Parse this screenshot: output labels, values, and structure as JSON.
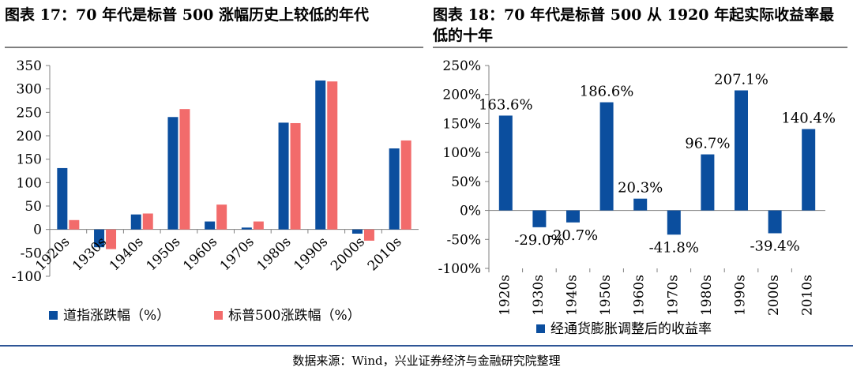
{
  "source": "数据来源：Wind，兴业证券经济与金融研究院整理",
  "chart_data": [
    {
      "title": "图表 17：70 年代是标普 500 涨幅历史上较低的年代",
      "type": "bar",
      "categories": [
        "1920s",
        "1930s",
        "1940s",
        "1950s",
        "1960s",
        "1970s",
        "1980s",
        "1990s",
        "2000s",
        "2010s"
      ],
      "series": [
        {
          "name": "道指涨跌幅（%）",
          "color": "#0b4e9e",
          "values": [
            131,
            -38,
            32,
            240,
            17,
            4,
            228,
            318,
            -9,
            173
          ]
        },
        {
          "name": "标普500涨跌幅（%）",
          "color": "#f26b6b",
          "values": [
            20,
            -42,
            34,
            257,
            53,
            17,
            227,
            316,
            -24,
            190
          ]
        }
      ],
      "ylim": [
        -100,
        350
      ],
      "yticks": [
        -100,
        -50,
        0,
        50,
        100,
        150,
        200,
        250,
        300,
        350
      ],
      "legend": "bottom",
      "grid": false
    },
    {
      "title": "图表 18：70 年代是标普 500 从 1920 年起实际收益率最低的十年",
      "type": "bar",
      "categories": [
        "1920s",
        "1930s",
        "1940s",
        "1950s",
        "1960s",
        "1970s",
        "1980s",
        "1990s",
        "2000s",
        "2010s"
      ],
      "series": [
        {
          "name": "经通货膨胀调整后的收益率",
          "color": "#0b4e9e",
          "values": [
            163.6,
            -29.0,
            -20.7,
            186.6,
            20.3,
            -41.8,
            96.7,
            207.1,
            -39.4,
            140.4
          ]
        }
      ],
      "data_labels": [
        "163.6%",
        "-29.0%",
        "-20.7%",
        "186.6%",
        "20.3%",
        "-41.8%",
        "96.7%",
        "207.1%",
        "-39.4%",
        "140.4%"
      ],
      "ylim": [
        -100,
        250
      ],
      "yticks": [
        "-100%",
        "-50%",
        "0%",
        "50%",
        "100%",
        "150%",
        "200%",
        "250%"
      ],
      "legend": "bottom",
      "grid": false
    }
  ]
}
